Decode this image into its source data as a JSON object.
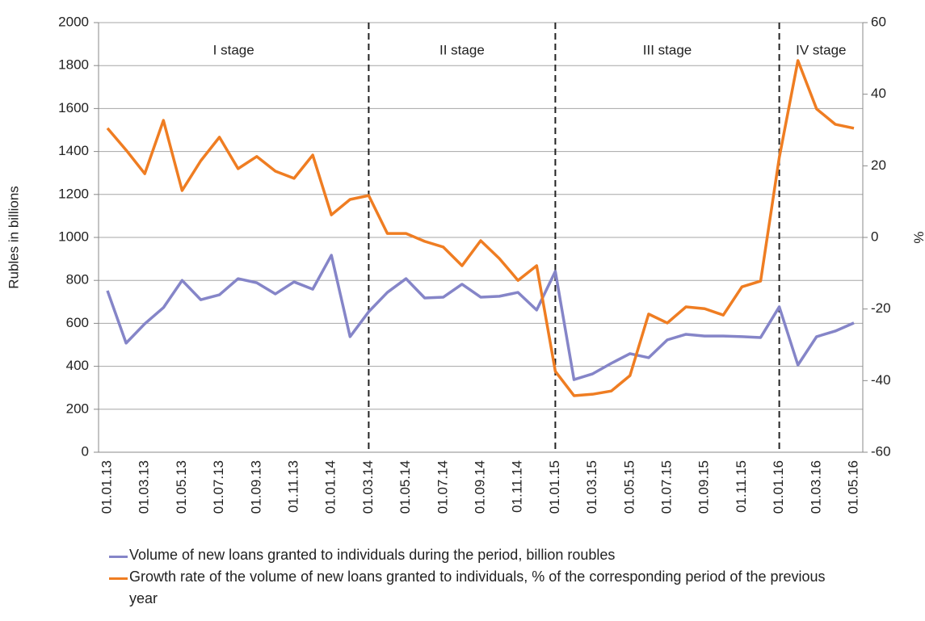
{
  "chart_data": {
    "type": "line",
    "y_label": "Rubles in billions",
    "y2_label": "%",
    "categories": [
      "01.01.13",
      null,
      "01.03.13",
      null,
      "01.05.13",
      null,
      "01.07.13",
      null,
      "01.09.13",
      null,
      "01.11.13",
      null,
      "01.01.14",
      null,
      "01.03.14",
      null,
      "01.05.14",
      null,
      "01.07.14",
      null,
      "01.09.14",
      null,
      "01.11.14",
      null,
      "01.01.15",
      null,
      "01.03.15",
      null,
      "01.05.15",
      null,
      "01.07.15",
      null,
      "01.09.15",
      null,
      "01.11.15",
      null,
      "01.01.16",
      null,
      "01.03.16",
      null,
      "01.05.16"
    ],
    "series": [
      {
        "name": "Volume of new loans granted to individuals during the period, billion roubles",
        "color": "#8585c8",
        "values": [
          752,
          508,
          598,
          673,
          800,
          710,
          733,
          808,
          789,
          737,
          793,
          759,
          917,
          538,
          654,
          744,
          808,
          718,
          722,
          782,
          722,
          726,
          744,
          662,
          842,
          338,
          365,
          414,
          459,
          440,
          523,
          549,
          541,
          541,
          538,
          534,
          677,
          406,
          538,
          564,
          602
        ]
      },
      {
        "name": "Growth rate of the volume of new loans granted to individuals, % of the corresponding period of the previous year",
        "color": "#ef7d22",
        "axis": "y2",
        "values": [
          30.5,
          24.4,
          17.8,
          32.7,
          13.1,
          21.4,
          28,
          19.2,
          22.6,
          18.5,
          16.5,
          23,
          6.3,
          10.6,
          11.7,
          1.1,
          1.1,
          -1.1,
          -2.7,
          -7.9,
          -0.9,
          -5.9,
          -12,
          -7.9,
          -37.4,
          -44.2,
          -43.8,
          -42.9,
          -38.6,
          -21.4,
          -23.9,
          -19.4,
          -19.9,
          -21.7,
          -13.8,
          -12.2,
          22.3,
          49.4,
          35.9,
          31.6,
          30.5
        ]
      }
    ],
    "ylim": [
      0,
      2000
    ],
    "yticks": [
      0,
      200,
      400,
      600,
      800,
      1000,
      1200,
      1400,
      1600,
      1800,
      2000
    ],
    "y2lim": [
      -60,
      60
    ],
    "y2ticks": [
      -60,
      -40,
      -20,
      0,
      20,
      40,
      60
    ],
    "grid": true,
    "stages": [
      "I stage",
      "II stage",
      "III stage",
      "IV stage"
    ],
    "stage_dividers": [
      "01.03.14",
      "01.01.15",
      "01.01.16"
    ]
  }
}
